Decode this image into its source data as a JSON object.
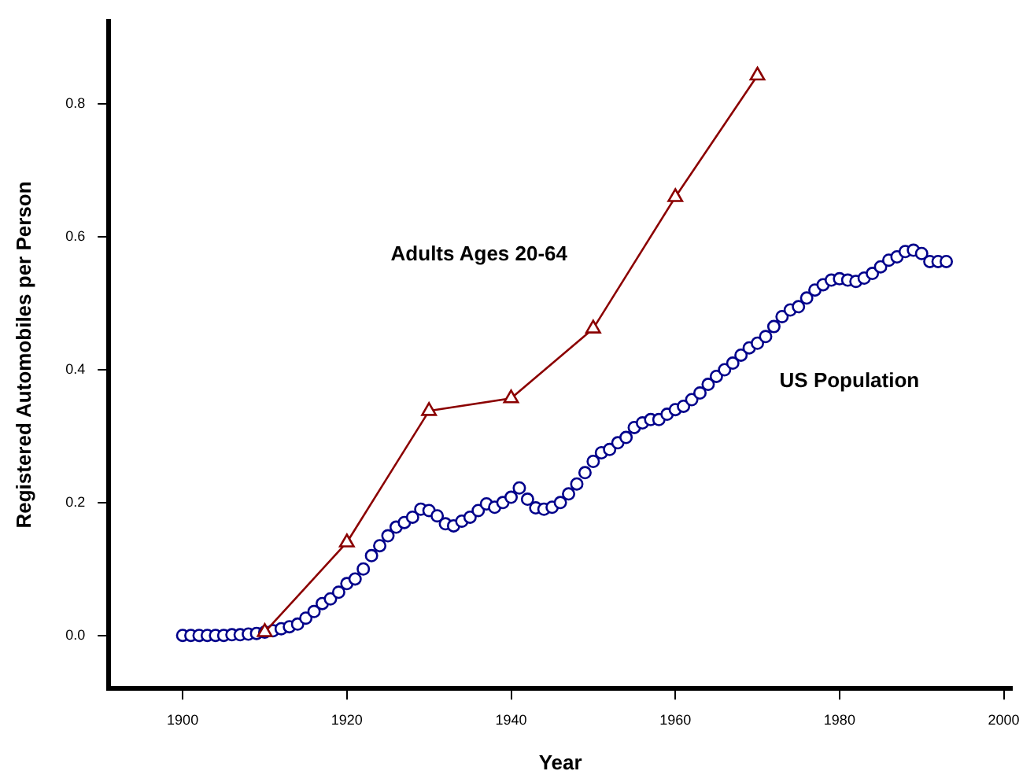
{
  "chart_data": {
    "type": "line",
    "xlabel": "Year",
    "ylabel": "Registered Automobiles per Person",
    "xlim": [
      1891,
      2001
    ],
    "xticks": [
      1900,
      1920,
      1940,
      1960,
      1980,
      2000
    ],
    "ylim": [
      -0.08,
      0.925
    ],
    "yticks": [
      {
        "value": 0,
        "label": "0.0"
      },
      0.2,
      0.4,
      0.6,
      0.8
    ],
    "grid": false,
    "legend": false,
    "series": [
      {
        "name": "Adults Ages 20-64",
        "type": "line",
        "color": "#8b0000",
        "marker": "triangle",
        "x": [
          1910,
          1920,
          1930,
          1940,
          1950,
          1960,
          1970
        ],
        "values": [
          0.005,
          0.14,
          0.338,
          0.357,
          0.462,
          0.66,
          0.843
        ]
      },
      {
        "name": "US Population",
        "type": "scatter",
        "color": "#00008b",
        "marker": "circle",
        "x": [
          1900,
          1901,
          1902,
          1903,
          1904,
          1905,
          1906,
          1907,
          1908,
          1909,
          1910,
          1911,
          1912,
          1913,
          1914,
          1915,
          1916,
          1917,
          1918,
          1919,
          1920,
          1921,
          1922,
          1923,
          1924,
          1925,
          1926,
          1927,
          1928,
          1929,
          1930,
          1931,
          1932,
          1933,
          1934,
          1935,
          1936,
          1937,
          1938,
          1939,
          1940,
          1941,
          1942,
          1943,
          1944,
          1945,
          1946,
          1947,
          1948,
          1949,
          1950,
          1951,
          1952,
          1953,
          1954,
          1955,
          1956,
          1957,
          1958,
          1959,
          1960,
          1961,
          1962,
          1963,
          1964,
          1965,
          1966,
          1967,
          1968,
          1969,
          1970,
          1971,
          1972,
          1973,
          1974,
          1975,
          1976,
          1977,
          1978,
          1979,
          1980,
          1981,
          1982,
          1983,
          1984,
          1985,
          1986,
          1987,
          1988,
          1989,
          1990,
          1991,
          1992,
          1993
        ],
        "values": [
          0,
          0,
          0,
          0,
          0,
          0,
          0.001,
          0.001,
          0.002,
          0.003,
          0.005,
          0.007,
          0.01,
          0.013,
          0.017,
          0.026,
          0.036,
          0.048,
          0.055,
          0.065,
          0.078,
          0.085,
          0.1,
          0.12,
          0.135,
          0.15,
          0.163,
          0.17,
          0.178,
          0.19,
          0.188,
          0.18,
          0.168,
          0.165,
          0.172,
          0.178,
          0.188,
          0.198,
          0.193,
          0.2,
          0.208,
          0.222,
          0.205,
          0.192,
          0.19,
          0.193,
          0.2,
          0.213,
          0.228,
          0.245,
          0.262,
          0.275,
          0.28,
          0.29,
          0.298,
          0.313,
          0.32,
          0.325,
          0.325,
          0.333,
          0.34,
          0.345,
          0.355,
          0.365,
          0.378,
          0.39,
          0.4,
          0.41,
          0.422,
          0.433,
          0.44,
          0.45,
          0.465,
          0.48,
          0.49,
          0.495,
          0.508,
          0.52,
          0.528,
          0.535,
          0.537,
          0.535,
          0.533,
          0.538,
          0.545,
          0.555,
          0.565,
          0.57,
          0.578,
          0.58,
          0.575,
          0.563,
          0.563,
          0.563
        ]
      }
    ]
  }
}
